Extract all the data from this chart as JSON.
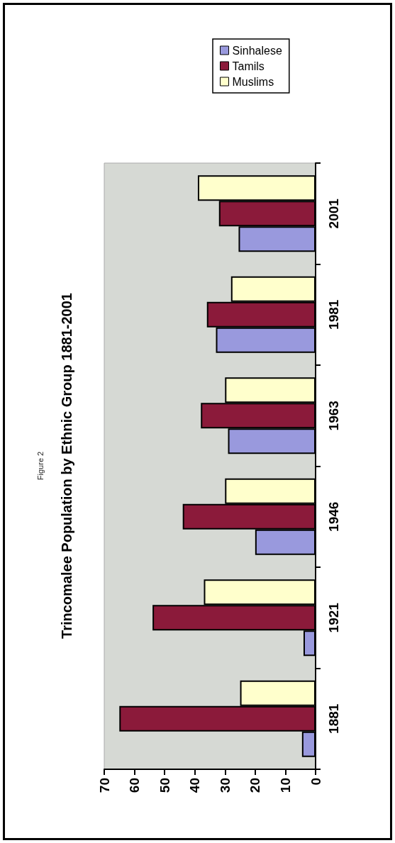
{
  "chart_data": {
    "type": "bar",
    "orientation": "horizontal",
    "title": "Trincomalee Population by Ethnic Group 1881-2001",
    "annotations": [
      "Figure 2"
    ],
    "categories": [
      "2001",
      "1981",
      "1963",
      "1946",
      "1921",
      "1881"
    ],
    "series": [
      {
        "name": "Sinhalese",
        "color": "#9999dd",
        "values": [
          25.5,
          33,
          29,
          20,
          4,
          4.5
        ]
      },
      {
        "name": "Tamils",
        "color": "#8b1a3a",
        "values": [
          32,
          36,
          38,
          44,
          54,
          65
        ]
      },
      {
        "name": "Muslims",
        "color": "#ffffcc",
        "values": [
          39,
          28,
          30,
          30,
          37,
          25
        ]
      }
    ],
    "xlim": [
      70,
      0
    ],
    "xticks": [
      0,
      10,
      20,
      30,
      40,
      50,
      60,
      70
    ],
    "legend": "top right",
    "grid": false
  }
}
